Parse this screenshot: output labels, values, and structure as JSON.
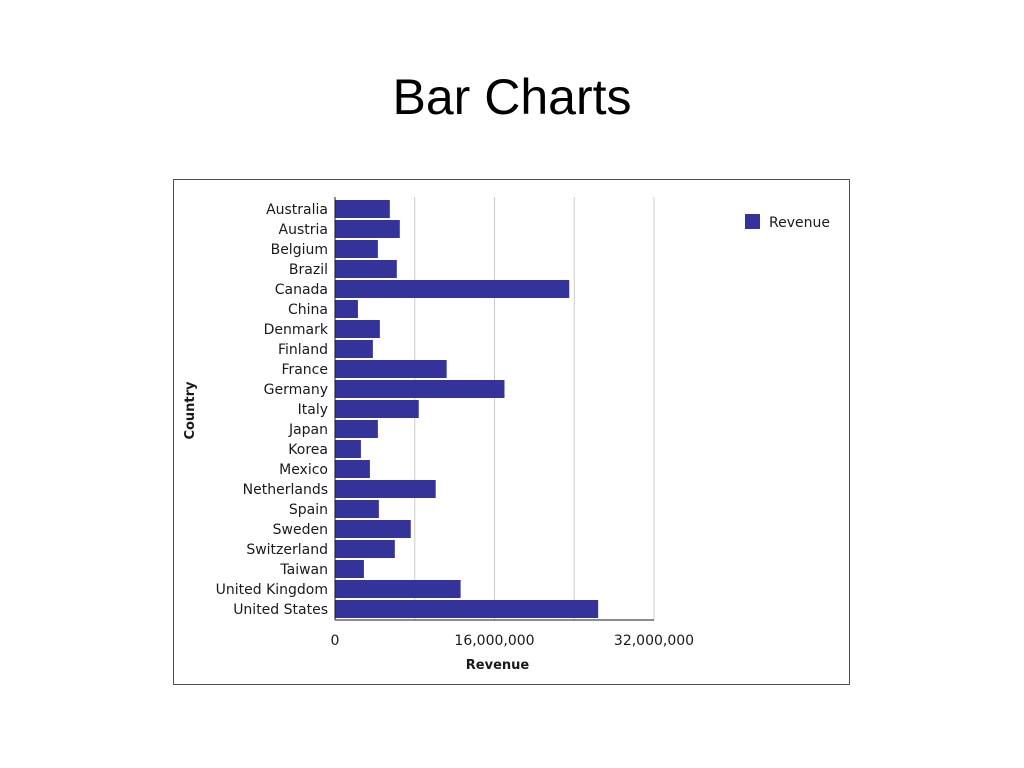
{
  "slide": {
    "title": "Bar Charts"
  },
  "chart_data": {
    "type": "bar",
    "orientation": "horizontal",
    "categories": [
      "Australia",
      "Austria",
      "Belgium",
      "Brazil",
      "Canada",
      "China",
      "Denmark",
      "Finland",
      "France",
      "Germany",
      "Italy",
      "Japan",
      "Korea",
      "Mexico",
      "Netherlands",
      "Spain",
      "Sweden",
      "Switzerland",
      "Taiwan",
      "United Kingdom",
      "United States"
    ],
    "series": [
      {
        "name": "Revenue",
        "color": "#333399",
        "values": [
          5500000,
          6500000,
          4300000,
          6200000,
          23500000,
          2300000,
          4500000,
          3800000,
          11200000,
          17000000,
          8400000,
          4300000,
          2600000,
          3500000,
          10100000,
          4400000,
          7600000,
          6000000,
          2900000,
          12600000,
          26400000
        ]
      }
    ],
    "xlabel": "Revenue",
    "ylabel": "Country",
    "xlim": [
      0,
      32000000
    ],
    "xticks": [
      0,
      16000000,
      32000000
    ],
    "xtick_labels": [
      "0",
      "16,000,000",
      "32,000,000"
    ],
    "grid": "vertical",
    "legend": "top-right"
  }
}
